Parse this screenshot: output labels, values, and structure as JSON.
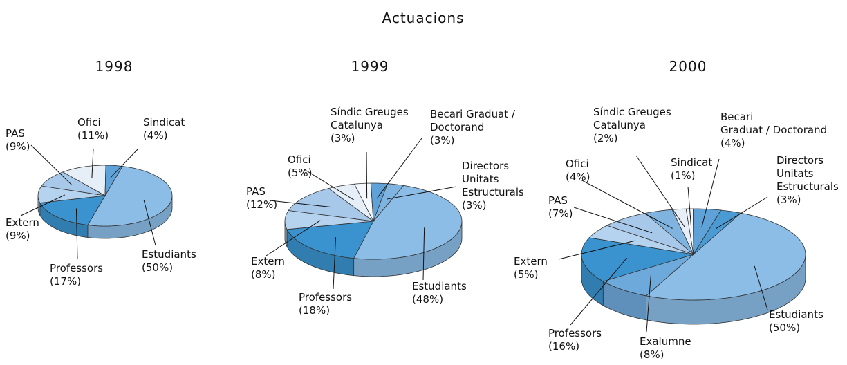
{
  "title": "Actuacions",
  "chart_data": [
    {
      "type": "pie3d",
      "title": "1998",
      "categories": [
        "Estudiants",
        "Professors",
        "Extern",
        "PAS",
        "Ofici",
        "Sindicat"
      ],
      "values": [
        50,
        17,
        9,
        9,
        11,
        4
      ],
      "value_labels": [
        "(50%)",
        "(17%)",
        "(9%)",
        "(9%)",
        "(11%)",
        "(4%)"
      ],
      "colors": [
        "#8cbde6",
        "#3a93cf",
        "#b5d2ee",
        "#a7c8e9",
        "#e6eef8",
        "#5fa2d8"
      ]
    },
    {
      "type": "pie3d",
      "title": "1999",
      "categories": [
        "Estudiants",
        "Professors",
        "Extern",
        "PAS",
        "Ofici",
        "Síndic Greuges\nCatalunya",
        "Becari Graduat /\nDoctorand",
        "Directors\nUnitats\nEstructurals"
      ],
      "values": [
        48,
        18,
        8,
        12,
        5,
        3,
        3,
        3
      ],
      "value_labels": [
        "(48%)",
        "(18%)",
        "(8%)",
        "(12%)",
        "(5%)",
        "(3%)",
        "(3%)",
        "(3%)"
      ],
      "colors": [
        "#8cbde6",
        "#3a93cf",
        "#b5d2ee",
        "#a7c8e9",
        "#e6eef8",
        "#f4f7fb",
        "#5fa2d8",
        "#7fb4e0"
      ]
    },
    {
      "type": "pie3d",
      "title": "2000",
      "categories": [
        "Estudiants",
        "Exalumne",
        "Professors",
        "Extern",
        "PAS",
        "Ofici",
        "Síndic Greuges\nCatalunya",
        "Sindicat",
        "Becari\nGraduat / Doctorand",
        "Directors\nUnitats\nEstructurals"
      ],
      "values": [
        50,
        8,
        16,
        5,
        7,
        4,
        2,
        1,
        4,
        3
      ],
      "value_labels": [
        "(50%)",
        "(8%)",
        "(16%)",
        "(5%)",
        "(7%)",
        "(4%)",
        "(2%)",
        "(1%)",
        "(4%)",
        "(3%)"
      ],
      "colors": [
        "#8cbde6",
        "#6ea9dc",
        "#3a93cf",
        "#b5d2ee",
        "#a7c8e9",
        "#7fb4e0",
        "#e6eef8",
        "#f4f7fb",
        "#5fa2d8",
        "#4a9ad3"
      ]
    }
  ]
}
